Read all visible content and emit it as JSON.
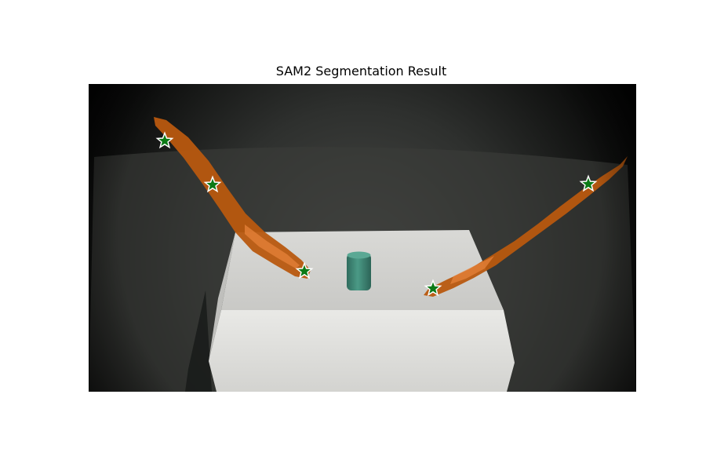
{
  "figure": {
    "title": "SAM2 Segmentation Result"
  },
  "colors": {
    "mask": "#b8580f",
    "mask_highlight": "#e5823a",
    "point_marker": "#0b7a16",
    "point_marker_edge": "#ffffff",
    "box": "#e1e1de",
    "cylinder": "#3f8a78"
  },
  "prompt_points": [
    {
      "mask": "left-gripper-arm"
    },
    {
      "mask": "left-gripper-arm"
    },
    {
      "mask": "left-gripper-arm"
    },
    {
      "mask": "right-gripper-arm"
    },
    {
      "mask": "right-gripper-arm"
    }
  ]
}
